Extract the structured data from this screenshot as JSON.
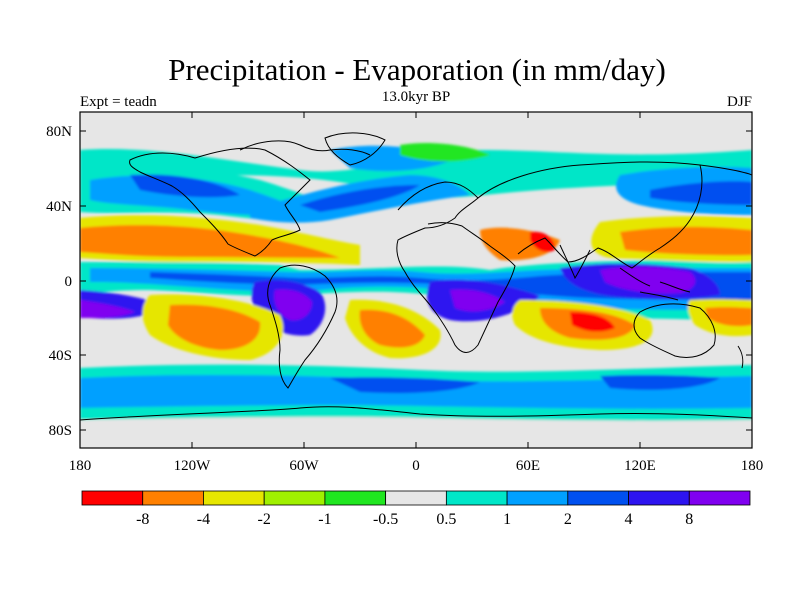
{
  "title": "Precipitation - Evaporation (in mm/day)",
  "subtitle": "13.0kyr BP",
  "left_label": "Expt = teadn",
  "right_label": "DJF",
  "y_axis_ticks": [
    "80N",
    "40N",
    "0",
    "40S",
    "80S"
  ],
  "x_axis_ticks": [
    "180",
    "120W",
    "60W",
    "0",
    "60E",
    "120E",
    "180"
  ],
  "colorbar": {
    "colors": [
      "#ff0000",
      "#ff8000",
      "#e6e600",
      "#a0f000",
      "#20e620",
      "#e6e6e6",
      "#00e6c8",
      "#00a0ff",
      "#0050f0",
      "#2d14f0",
      "#8000f0"
    ],
    "labels": [
      "-8",
      "-4",
      "-2",
      "-1",
      "-0.5",
      "0.5",
      "1",
      "2",
      "4",
      "8"
    ]
  }
}
